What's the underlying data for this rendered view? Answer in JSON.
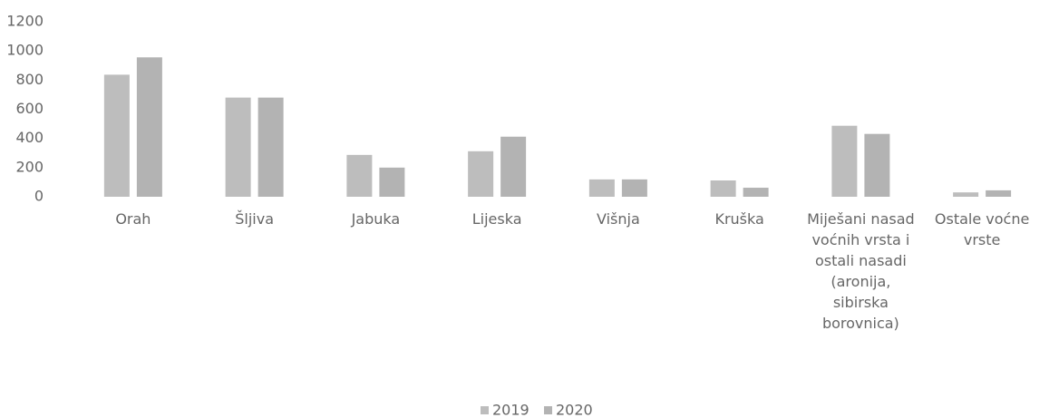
{
  "chart_data": {
    "type": "bar",
    "categories": [
      "Orah",
      "Šljiva",
      "Jabuka",
      "Lijeska",
      "Višnja",
      "Kruška",
      "Miješani nasad voćnih vrsta i ostali nasadi (aronija, sibirska borovnica)",
      "Ostale voćne vrste"
    ],
    "series": [
      {
        "name": "2019",
        "color": "#bdbdbd",
        "values": [
          837,
          680,
          287,
          312,
          119,
          112,
          487,
          30
        ]
      },
      {
        "name": "2020",
        "color": "#b3b3b3",
        "values": [
          956,
          680,
          200,
          412,
          119,
          62,
          431,
          44
        ]
      }
    ],
    "ylim": [
      0,
      1200
    ],
    "yticks": [
      0,
      200,
      400,
      600,
      800,
      1000,
      1200
    ],
    "grid": false,
    "legend": "bottom"
  }
}
